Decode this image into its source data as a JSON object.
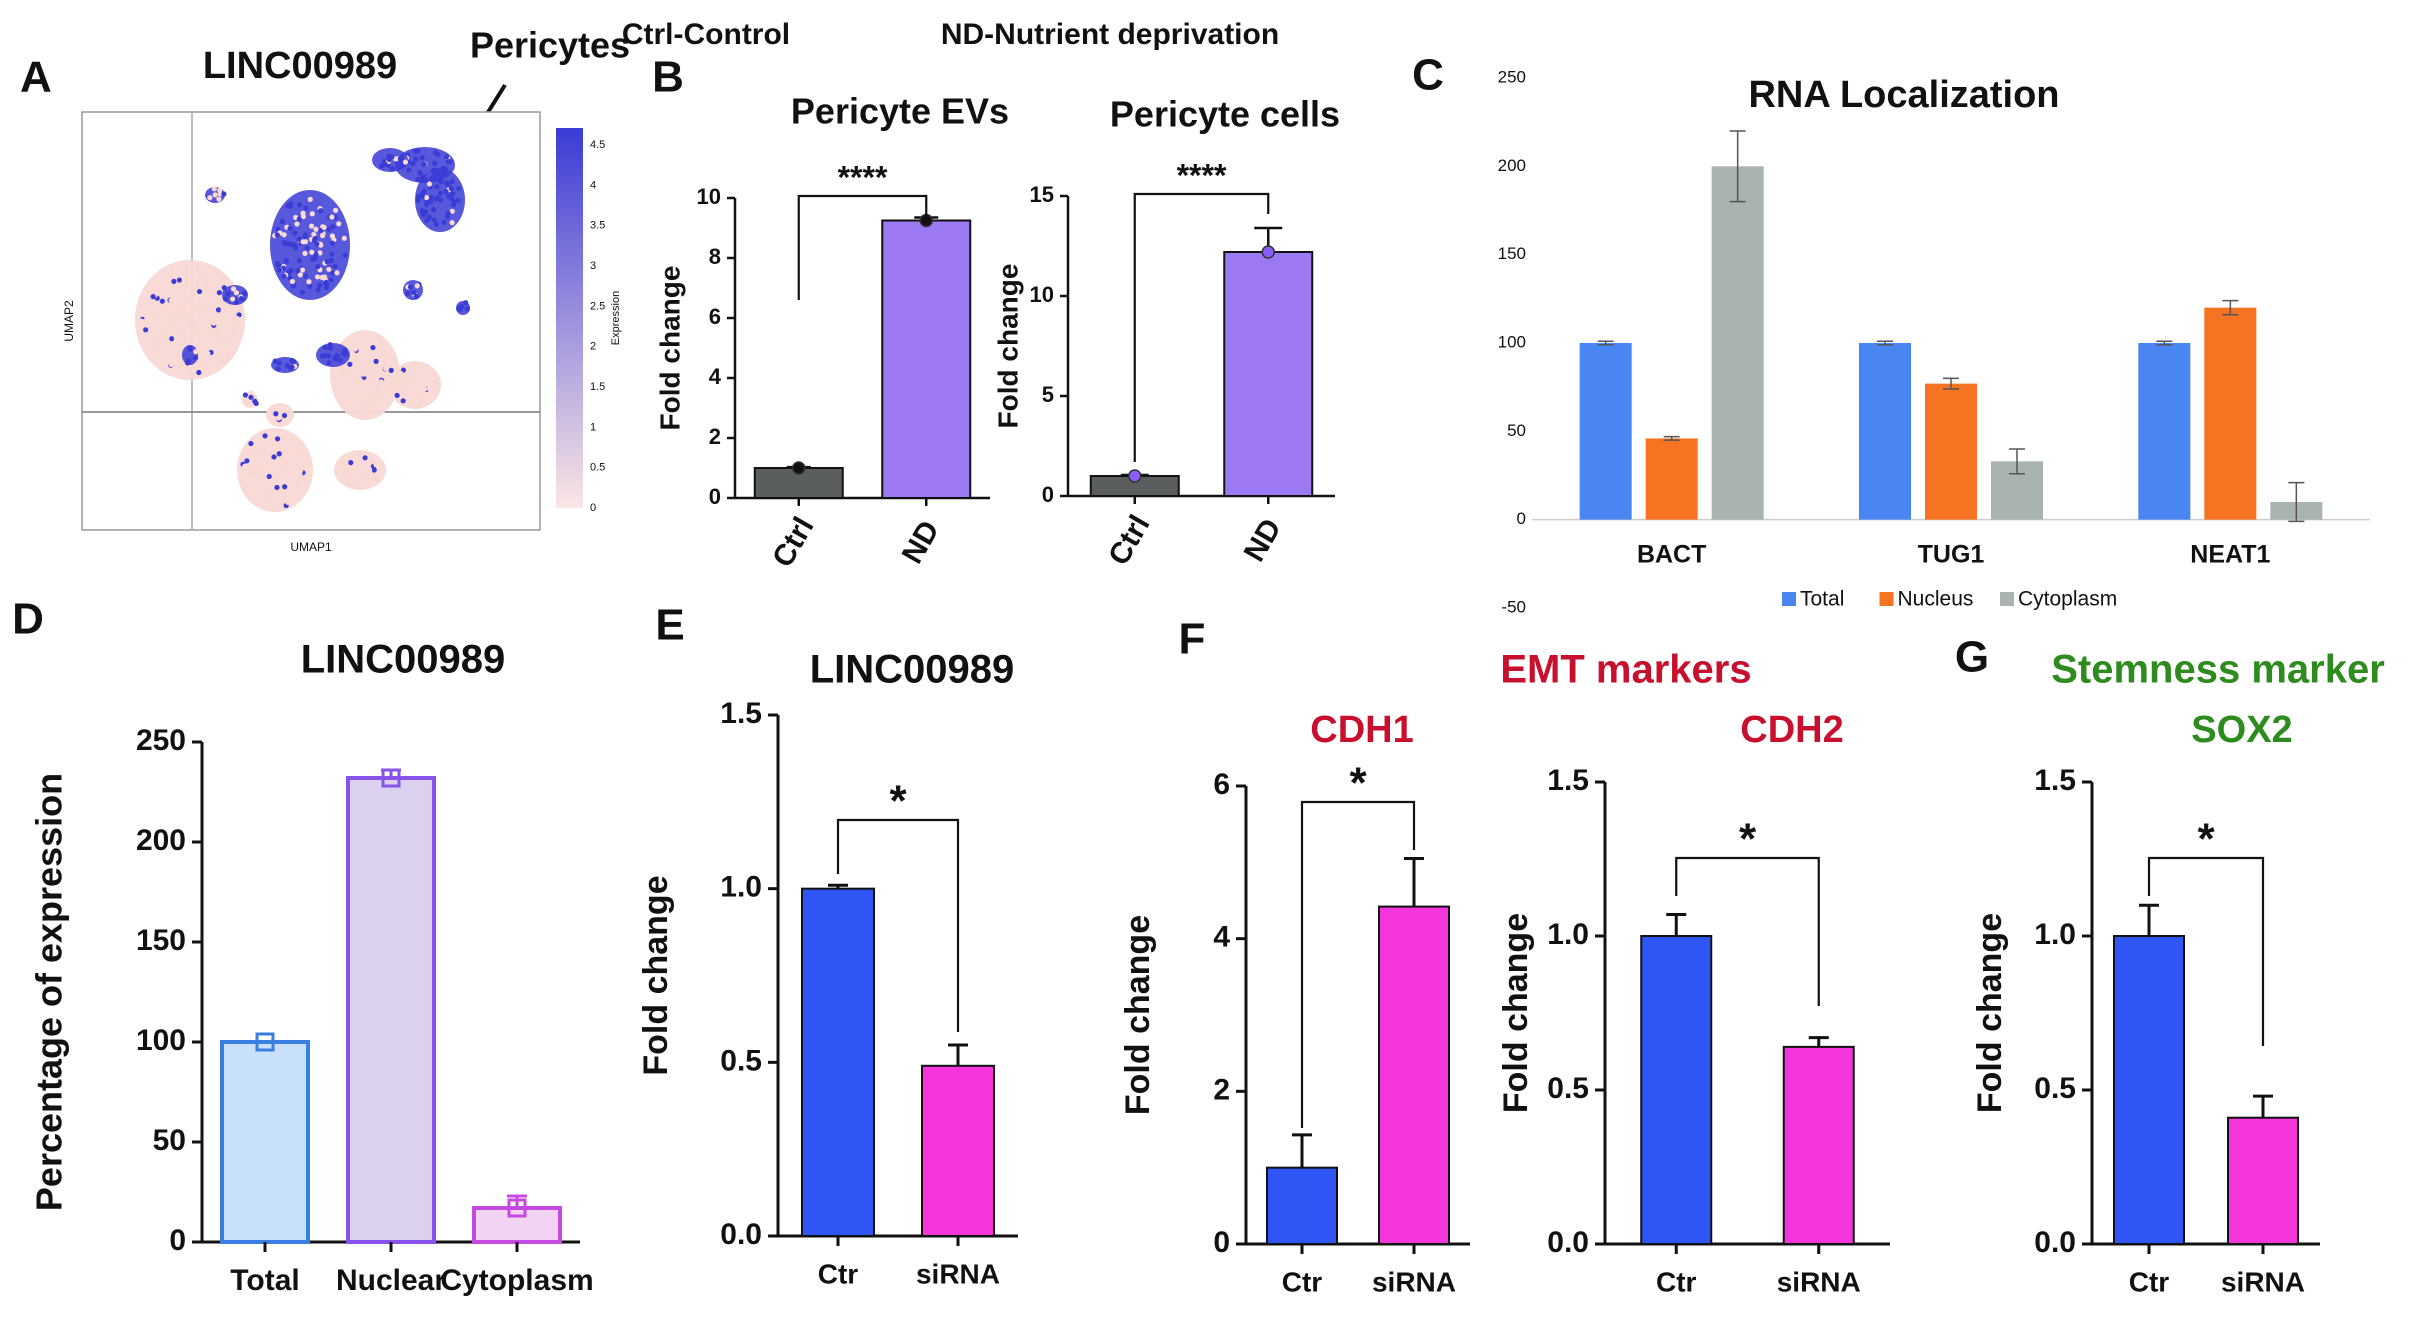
{
  "header": {
    "ctrl_text": "Ctrl-Control",
    "nd_text": "ND-Nutrient deprivation"
  },
  "umap": {
    "panel_letter": "A",
    "title": "LINC00989",
    "annotation": "Pericytes",
    "xlabel": "UMAP1",
    "ylabel": "UMAP2",
    "colorbar_label": "Expression",
    "colorbar_ticks": [
      "0",
      "0.5",
      "1",
      "1.5",
      "2",
      "2.5",
      "3",
      "3.5",
      "4",
      "4.5"
    ],
    "colors": {
      "low": "#f8d9d4",
      "high": "#3b3bd6"
    }
  },
  "chart_data": [
    {
      "id": "B1",
      "panel_letter": "B",
      "type": "bar",
      "title": "Pericyte EVs",
      "xlabel": "",
      "ylabel": "Fold change",
      "categories": [
        "Ctrl",
        "ND"
      ],
      "values": [
        1.0,
        9.25
      ],
      "errors": [
        0.03,
        0.1
      ],
      "ylim": [
        0,
        10
      ],
      "yticks": [
        "0",
        "2",
        "4",
        "6",
        "8",
        "10"
      ],
      "colors": [
        "#5a5f5e",
        "#9c79f2"
      ],
      "significance": "****"
    },
    {
      "id": "B2",
      "panel_letter": "",
      "type": "bar",
      "title": "Pericyte cells",
      "xlabel": "",
      "ylabel": "Fold change",
      "categories": [
        "Ctrl",
        "ND"
      ],
      "values": [
        1.0,
        12.2
      ],
      "errors": [
        0.05,
        1.2
      ],
      "ylim": [
        0,
        15
      ],
      "yticks": [
        "0",
        "5",
        "10",
        "15"
      ],
      "colors": [
        "#5a5f5e",
        "#9c79f2"
      ],
      "significance": "****"
    },
    {
      "id": "C",
      "panel_letter": "C",
      "type": "bar",
      "title": "RNA Localization",
      "xlabel": "",
      "ylabel": "",
      "categories": [
        "BACT",
        "TUG1",
        "NEAT1"
      ],
      "series": [
        {
          "name": "Total",
          "values": [
            100,
            100,
            100
          ],
          "errors": [
            1,
            1,
            1
          ],
          "color": "#4a86f2"
        },
        {
          "name": "Nucleus",
          "values": [
            46,
            77,
            120
          ],
          "errors": [
            1,
            3,
            4
          ],
          "color": "#f57321"
        },
        {
          "name": "Cytoplasm",
          "values": [
            200,
            33,
            10
          ],
          "errors": [
            20,
            7,
            11
          ],
          "color": "#a9b3b1"
        }
      ],
      "ylim": [
        -50,
        250
      ],
      "yticks": [
        "-50",
        "0",
        "50",
        "100",
        "150",
        "200",
        "250"
      ],
      "legend": "bottom"
    },
    {
      "id": "D",
      "panel_letter": "D",
      "type": "bar",
      "title": "LINC00989",
      "xlabel": "",
      "ylabel": "Percentage of expression",
      "categories": [
        "Total",
        "Nuclear",
        "Cytoplasm"
      ],
      "values": [
        100,
        232,
        17
      ],
      "errors": [
        0,
        4,
        6
      ],
      "ylim": [
        0,
        250
      ],
      "yticks": [
        "0",
        "50",
        "100",
        "150",
        "200",
        "250"
      ],
      "fills": [
        "#c9e0fa",
        "#dcd0ef",
        "#f2d3f2"
      ],
      "strokes": [
        "#3a7ee2",
        "#8753ea",
        "#c64ae2"
      ]
    },
    {
      "id": "E",
      "panel_letter": "E",
      "type": "bar",
      "title": "LINC00989",
      "xlabel": "",
      "ylabel": "Fold change",
      "categories": [
        "Ctr",
        "siRNA"
      ],
      "values": [
        1.0,
        0.49
      ],
      "errors": [
        0.01,
        0.06
      ],
      "ylim": [
        0,
        1.5
      ],
      "yticks": [
        "0.0",
        "0.5",
        "1.0",
        "1.5"
      ],
      "colors": [
        "#2f55f5",
        "#f535dc"
      ],
      "significance": "*"
    },
    {
      "id": "F1",
      "panel_letter": "F",
      "type": "bar",
      "title": "CDH1",
      "xlabel": "",
      "ylabel": "Fold change",
      "categories": [
        "Ctr",
        "siRNA"
      ],
      "values": [
        1.0,
        4.42
      ],
      "errors": [
        0.43,
        0.63
      ],
      "ylim": [
        0,
        6
      ],
      "yticks": [
        "0",
        "2",
        "4",
        "6"
      ],
      "colors": [
        "#2f55f5",
        "#f535dc"
      ],
      "significance": "*"
    },
    {
      "id": "F2",
      "panel_letter": "",
      "type": "bar",
      "title": "CDH2",
      "xlabel": "",
      "ylabel": "Fold change",
      "categories": [
        "Ctr",
        "siRNA"
      ],
      "values": [
        1.0,
        0.64
      ],
      "errors": [
        0.07,
        0.03
      ],
      "ylim": [
        0,
        1.5
      ],
      "yticks": [
        "0.0",
        "0.5",
        "1.0",
        "1.5"
      ],
      "colors": [
        "#2f55f5",
        "#f535dc"
      ],
      "significance": "*"
    },
    {
      "id": "G",
      "panel_letter": "G",
      "type": "bar",
      "title": "SOX2",
      "xlabel": "",
      "ylabel": "Fold change",
      "categories": [
        "Ctr",
        "siRNA"
      ],
      "values": [
        1.0,
        0.41
      ],
      "errors": [
        0.1,
        0.07
      ],
      "ylim": [
        0,
        1.5
      ],
      "yticks": [
        "0.0",
        "0.5",
        "1.0",
        "1.5"
      ],
      "colors": [
        "#2f55f5",
        "#f535dc"
      ],
      "significance": "*"
    }
  ],
  "group_titles": {
    "emt": "EMT markers",
    "stemness": "Stemness marker"
  },
  "theme": {
    "emt_color": "#c8102e",
    "stem_color": "#2e8b1e",
    "axis_color": "#111111"
  }
}
